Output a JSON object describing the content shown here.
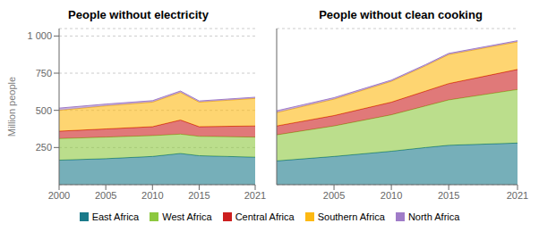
{
  "chart_data": [
    {
      "type": "area",
      "title": "People without electricity",
      "ylabel": "Million people",
      "stacked": true,
      "grid": true,
      "legend": "bottom",
      "x": [
        2000,
        2005,
        2010,
        2013,
        2015,
        2021
      ],
      "xlim": [
        2000,
        2021
      ],
      "xticks": [
        2000,
        2005,
        2010,
        2015,
        2021
      ],
      "ylim": [
        0,
        1050
      ],
      "yticks": [
        250,
        500,
        750,
        {
          "value": 1000,
          "label": "1 000"
        }
      ],
      "series": [
        {
          "name": "East Africa",
          "color": "#1a7a8a",
          "values": [
            165,
            175,
            190,
            210,
            195,
            185
          ]
        },
        {
          "name": "West Africa",
          "color": "#8dc83f",
          "values": [
            145,
            145,
            140,
            130,
            130,
            135
          ]
        },
        {
          "name": "Central Africa",
          "color": "#cc1f1f",
          "values": [
            50,
            55,
            60,
            95,
            65,
            75
          ]
        },
        {
          "name": "Southern Africa",
          "color": "#fdb913",
          "values": [
            140,
            155,
            165,
            185,
            165,
            185
          ]
        },
        {
          "name": "North Africa",
          "color": "#a07cc8",
          "values": [
            15,
            12,
            10,
            10,
            8,
            8
          ]
        }
      ]
    },
    {
      "type": "area",
      "title": "People without clean cooking",
      "stacked": true,
      "grid": true,
      "tick_labels": "x",
      "x": [
        2000,
        2005,
        2010,
        2013,
        2015,
        2021
      ],
      "xlim": [
        2000,
        2021
      ],
      "xticks": [
        2000,
        2005,
        2010,
        2015,
        2021
      ],
      "ylim": [
        0,
        1050
      ],
      "yticks": [
        250,
        500,
        750,
        {
          "value": 1000,
          "label": "1 000"
        }
      ],
      "series": [
        {
          "name": "East Africa",
          "color": "#1a7a8a",
          "values": [
            160,
            190,
            225,
            250,
            265,
            280
          ]
        },
        {
          "name": "West Africa",
          "color": "#8dc83f",
          "values": [
            175,
            205,
            245,
            280,
            305,
            360
          ]
        },
        {
          "name": "Central Africa",
          "color": "#cc1f1f",
          "values": [
            60,
            70,
            85,
            100,
            110,
            135
          ]
        },
        {
          "name": "Southern Africa",
          "color": "#fdb913",
          "values": [
            90,
            110,
            140,
            170,
            195,
            185
          ]
        },
        {
          "name": "North Africa",
          "color": "#a07cc8",
          "values": [
            12,
            10,
            8,
            8,
            8,
            8
          ]
        }
      ]
    }
  ]
}
